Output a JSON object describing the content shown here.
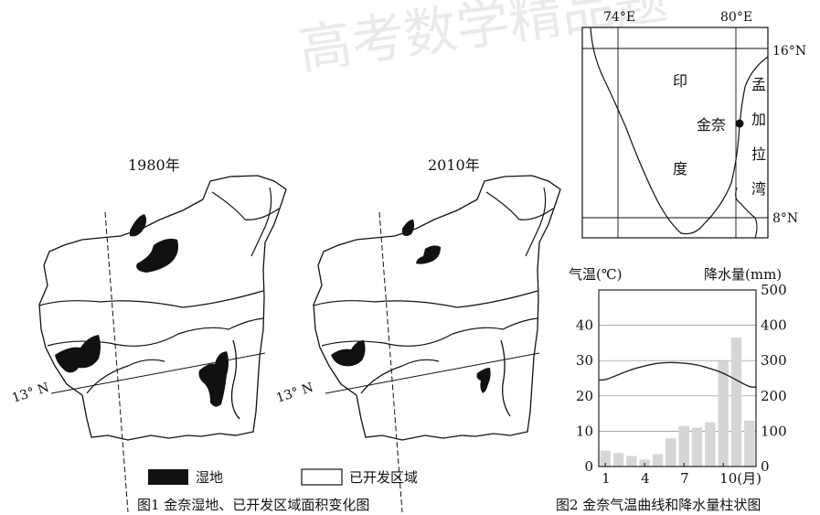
{
  "watermark": "高考数学精品题",
  "map1980": {
    "title": "1980年",
    "lat_label": "13° N"
  },
  "map2010": {
    "title": "2010年",
    "lat_label": "13° N"
  },
  "legend": {
    "wetland_label": "湿地",
    "developed_label": "已开发区域"
  },
  "fig1_caption": "图1 金奈湿地、已开发区域面积变化图",
  "location_map": {
    "lon_labels": [
      "74°E",
      "80°E"
    ],
    "lat_labels": [
      "16°N",
      "8°N"
    ],
    "india_label": [
      "印",
      "度"
    ],
    "city_label": "金奈",
    "bay_label": [
      "孟",
      "加",
      "拉",
      "湾"
    ]
  },
  "fig2_caption": "图2 金奈气温曲线和降水量柱状图",
  "chart_data": {
    "type": "bar",
    "categories": [
      "1",
      "2",
      "3",
      "4",
      "5",
      "6",
      "7",
      "8",
      "9",
      "10",
      "11",
      "12"
    ],
    "xtick_labels": [
      "1",
      "4",
      "7",
      "10(月)"
    ],
    "xtick_months": [
      1,
      4,
      7,
      10
    ],
    "ylabel_left": "气温(℃)",
    "ylabel_right": "降水量(mm)",
    "ylim_left": [
      0,
      50
    ],
    "ylim_right": [
      0,
      500
    ],
    "left_ticks": [
      0,
      10,
      20,
      30,
      40
    ],
    "right_ticks": [
      0,
      100,
      200,
      300,
      400,
      500
    ],
    "grid": true,
    "series": [
      {
        "name": "降水量",
        "type": "bar",
        "axis": "right",
        "values": [
          45,
          38,
          30,
          20,
          35,
          80,
          115,
          110,
          125,
          300,
          365,
          130
        ]
      },
      {
        "name": "气温",
        "type": "line",
        "axis": "left",
        "values": [
          24.5,
          26,
          27.5,
          28.5,
          29.3,
          29.5,
          29.3,
          28.8,
          27.8,
          26.5,
          24.5,
          22.5
        ]
      }
    ],
    "colors": {
      "bar": "#d6d6d6",
      "line": "#222222"
    }
  }
}
